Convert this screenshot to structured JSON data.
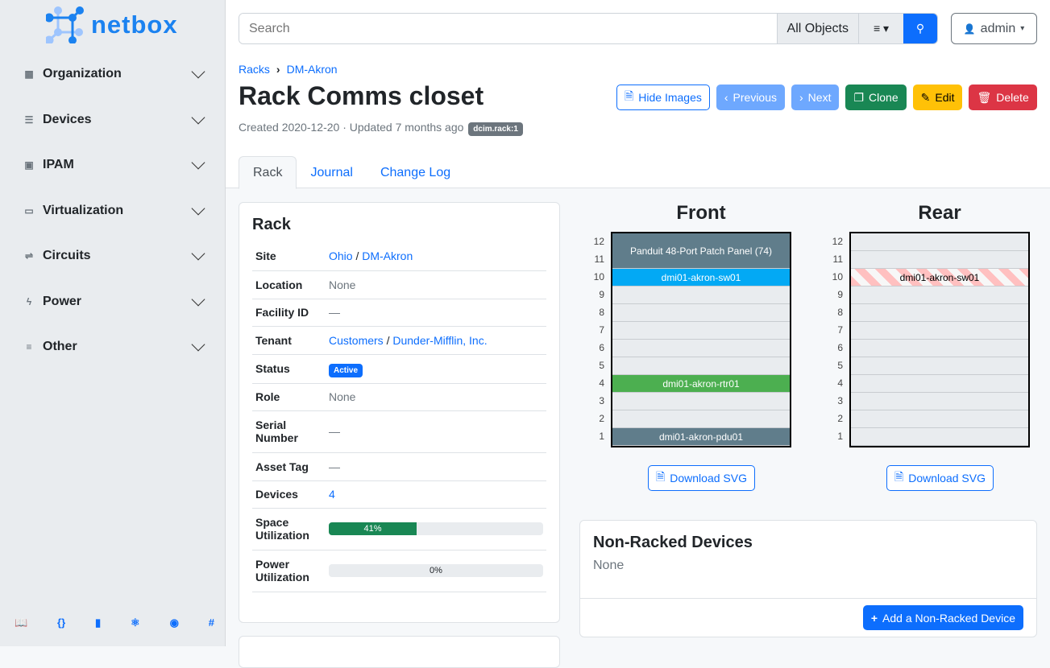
{
  "brand": "netbox",
  "sidebar": {
    "items": [
      {
        "label": "Organization",
        "icon": "building-icon",
        "glyph": "▦"
      },
      {
        "label": "Devices",
        "icon": "server-icon",
        "glyph": "☰"
      },
      {
        "label": "IPAM",
        "icon": "ip-icon",
        "glyph": "▣"
      },
      {
        "label": "Virtualization",
        "icon": "monitor-icon",
        "glyph": "▭"
      },
      {
        "label": "Circuits",
        "icon": "circuit-icon",
        "glyph": "⇌"
      },
      {
        "label": "Power",
        "icon": "lightning-icon",
        "glyph": "ϟ"
      },
      {
        "label": "Other",
        "icon": "lines-icon",
        "glyph": "≡"
      }
    ],
    "footer": [
      {
        "icon": "book-icon",
        "glyph": "📖"
      },
      {
        "icon": "api-braces-icon",
        "glyph": "{}"
      },
      {
        "icon": "bookmark-icon",
        "glyph": "▮"
      },
      {
        "icon": "graphql-icon",
        "glyph": "⚛"
      },
      {
        "icon": "github-icon",
        "glyph": "◉"
      },
      {
        "icon": "slack-icon",
        "glyph": "#"
      }
    ]
  },
  "search": {
    "placeholder": "Search",
    "scope": "All Objects"
  },
  "user": {
    "label": "admin"
  },
  "breadcrumb": [
    "Racks",
    "DM-Akron"
  ],
  "title": "Rack Comms closet",
  "meta": {
    "text": "Created 2020-12-20 · Updated 7 months ago",
    "badge": "dcim.rack:1"
  },
  "buttons": {
    "hide_images": "Hide Images",
    "previous": "Previous",
    "next": "Next",
    "clone": "Clone",
    "edit": "Edit",
    "delete": "Delete"
  },
  "tabs": [
    "Rack",
    "Journal",
    "Change Log"
  ],
  "rack_card": {
    "title": "Rack",
    "rows": {
      "site": {
        "label": "Site",
        "link1": "Ohio",
        "link2": "DM-Akron"
      },
      "location": {
        "label": "Location",
        "value": "None"
      },
      "facility": {
        "label": "Facility ID",
        "value": "—"
      },
      "tenant": {
        "label": "Tenant",
        "link1": "Customers",
        "link2": "Dunder-Mifflin, Inc."
      },
      "status": {
        "label": "Status",
        "value": "Active"
      },
      "role": {
        "label": "Role",
        "value": "None"
      },
      "serial": {
        "label": "Serial Number",
        "value": "—"
      },
      "asset": {
        "label": "Asset Tag",
        "value": "—"
      },
      "devices": {
        "label": "Devices",
        "value": "4"
      },
      "space": {
        "label": "Space Utilization",
        "percent": 41,
        "text": "41%"
      },
      "power": {
        "label": "Power Utilization",
        "percent": 0,
        "text": "0%"
      }
    }
  },
  "elevations": {
    "front": {
      "title": "Front",
      "devices": [
        {
          "name": "Panduit 48-Port Patch Panel (74)",
          "top": 12,
          "height": 2,
          "color": "#607d8b"
        },
        {
          "name": "dmi01-akron-sw01",
          "top": 10,
          "height": 1,
          "color": "#03a9f4"
        },
        {
          "name": "dmi01-akron-rtr01",
          "top": 4,
          "height": 1,
          "color": "#4caf50"
        },
        {
          "name": "dmi01-akron-pdu01",
          "top": 1,
          "height": 1,
          "color": "#607d8b"
        }
      ]
    },
    "rear": {
      "title": "Rear",
      "devices": [
        {
          "name": "dmi01-akron-sw01",
          "top": 10,
          "height": 1,
          "color": "occupied-stripes"
        }
      ]
    },
    "units": 12,
    "download": "Download SVG"
  },
  "non_racked": {
    "title": "Non-Racked Devices",
    "value": "None",
    "add": "Add a Non-Racked Device"
  }
}
